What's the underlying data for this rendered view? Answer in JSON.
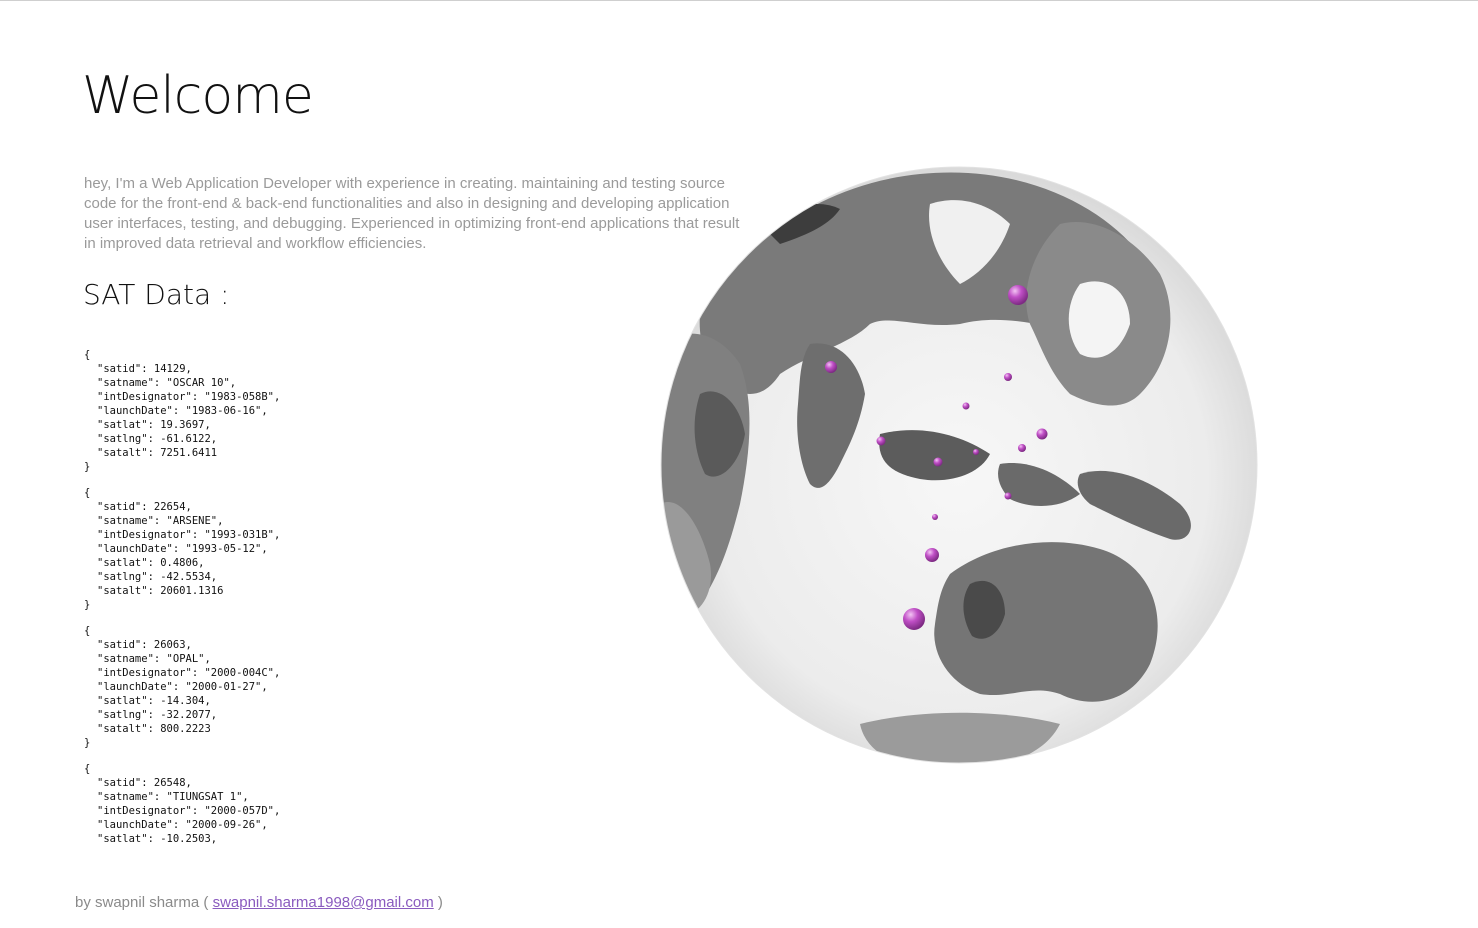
{
  "page": {
    "title": "Welcome",
    "intro": "hey, I'm a Web Application Developer with experience in creating. maintaining and testing source code for the front-end & back-end functionalities and also in designing and developing application user interfaces, testing, and debugging. Experienced in optimizing front-end applications that result in improved data retrieval and workflow efficiencies.",
    "sat_heading": "SAT Data :"
  },
  "satellites": [
    {
      "satid": "14129",
      "satname": "\"OSCAR 10\"",
      "intDesignator": "\"1983-058B\"",
      "launchDate": "\"1983-06-16\"",
      "satlat": "19.3697",
      "satlng": "-61.6122",
      "satalt": "7251.6411"
    },
    {
      "satid": "22654",
      "satname": "\"ARSENE\"",
      "intDesignator": "\"1993-031B\"",
      "launchDate": "\"1993-05-12\"",
      "satlat": "0.4806",
      "satlng": "-42.5534",
      "satalt": "20601.1316"
    },
    {
      "satid": "26063",
      "satname": "\"OPAL\"",
      "intDesignator": "\"2000-004C\"",
      "launchDate": "\"2000-01-27\"",
      "satlat": "-14.304",
      "satlng": "-32.2077",
      "satalt": "800.2223"
    },
    {
      "satid": "26548",
      "satname": "\"TIUNGSAT 1\"",
      "intDesignator": "\"2000-057D\"",
      "launchDate": "\"2000-09-26\"",
      "satlat": "-10.2503"
    }
  ],
  "globe": {
    "icon": "globe-icon",
    "marker_color": "#c04fc6"
  },
  "footer": {
    "prefix": "by swapnil sharma (",
    "email": "swapnil.sharma1998@gmail.com",
    "suffix": ")"
  }
}
